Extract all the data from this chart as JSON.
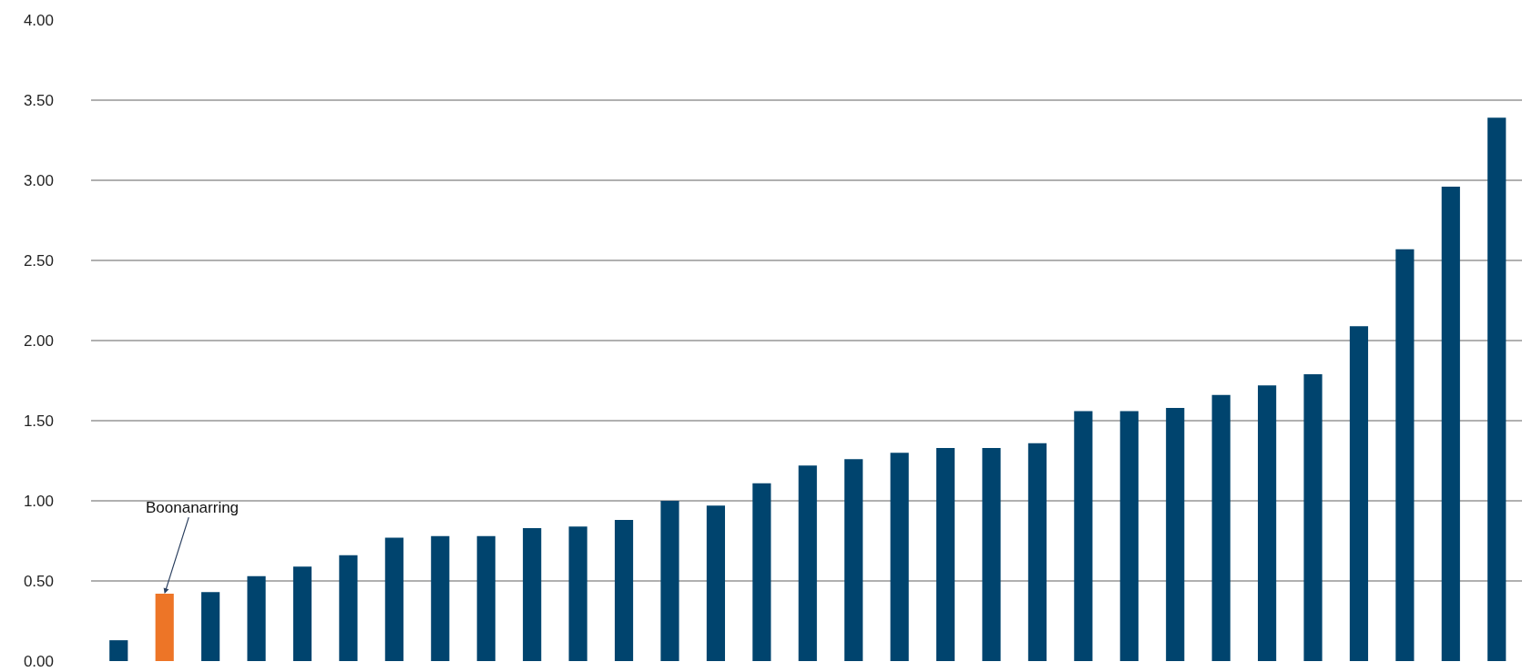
{
  "chart_data": {
    "type": "bar",
    "categories": [
      null,
      null,
      null,
      null,
      null,
      null,
      null,
      null,
      null,
      null,
      null,
      null,
      null,
      null,
      null,
      null,
      null,
      null,
      null,
      null,
      null,
      null,
      null,
      null,
      null,
      null,
      null,
      null,
      null,
      null,
      null
    ],
    "values": [
      0.13,
      0.42,
      0.43,
      0.53,
      0.59,
      0.66,
      0.77,
      0.78,
      0.78,
      0.83,
      0.84,
      0.88,
      1.0,
      0.97,
      1.11,
      1.22,
      1.26,
      1.3,
      1.33,
      1.33,
      1.36,
      1.56,
      1.56,
      1.58,
      1.66,
      1.72,
      1.79,
      2.09,
      2.57,
      2.96,
      3.39
    ],
    "colors": [
      "#00446e",
      "#ed7527",
      "#00446e",
      "#00446e",
      "#00446e",
      "#00446e",
      "#00446e",
      "#00446e",
      "#00446e",
      "#00446e",
      "#00446e",
      "#00446e",
      "#00446e",
      "#00446e",
      "#00446e",
      "#00446e",
      "#00446e",
      "#00446e",
      "#00446e",
      "#00446e",
      "#00446e",
      "#00446e",
      "#00446e",
      "#00446e",
      "#00446e",
      "#00446e",
      "#00446e",
      "#00446e",
      "#00446e",
      "#00446e",
      "#00446e"
    ],
    "ylim": [
      0,
      4
    ],
    "yticks": [
      {
        "value": 0,
        "label": "0.00"
      },
      {
        "value": 0.5,
        "label": "0.50"
      },
      {
        "value": 1,
        "label": "1.00"
      },
      {
        "value": 1.5,
        "label": "1.50"
      },
      {
        "value": 2,
        "label": "2.00"
      },
      {
        "value": 2.5,
        "label": "2.50"
      },
      {
        "value": 3,
        "label": "3.00"
      },
      {
        "value": 3.5,
        "label": "3.50"
      },
      {
        "value": 4,
        "label": "4.00"
      }
    ],
    "grid": "y",
    "tick_labels": "y",
    "annotations": [
      "Boonanarring"
    ]
  }
}
